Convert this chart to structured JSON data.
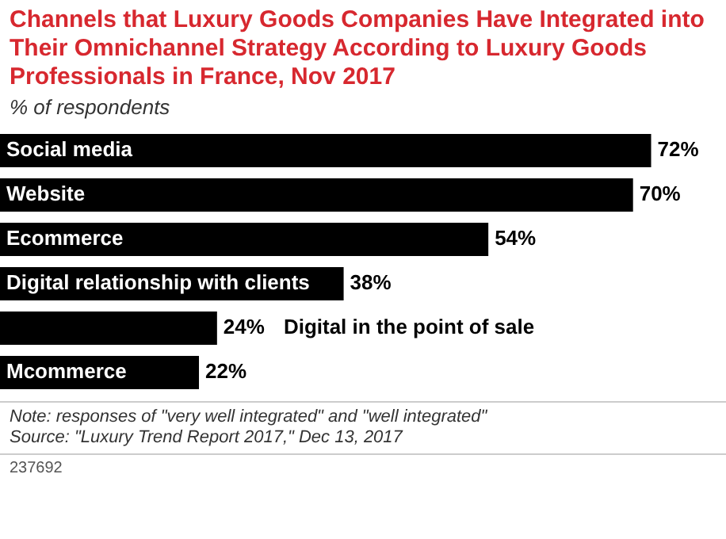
{
  "chart_data": {
    "type": "bar",
    "orientation": "horizontal",
    "title": "Channels that Luxury Goods Companies Have Integrated into Their Omnichannel Strategy According to Luxury Goods Professionals in France, Nov 2017",
    "subtitle": "% of respondents",
    "categories": [
      "Social media",
      "Website",
      "Ecommerce",
      "Digital relationship with clients",
      "Digital in the point of sale",
      "Mcommerce"
    ],
    "values": [
      72,
      70,
      54,
      38,
      24,
      22
    ],
    "value_labels": [
      "72%",
      "70%",
      "54%",
      "38%",
      "24%",
      "22%"
    ],
    "color": "#000000",
    "annotations": [
      "Note: responses of \"very well integrated\" and \"well integrated\"",
      "Source: \"Luxury Trend Report 2017,\" Dec 13, 2017",
      "237692"
    ]
  }
}
